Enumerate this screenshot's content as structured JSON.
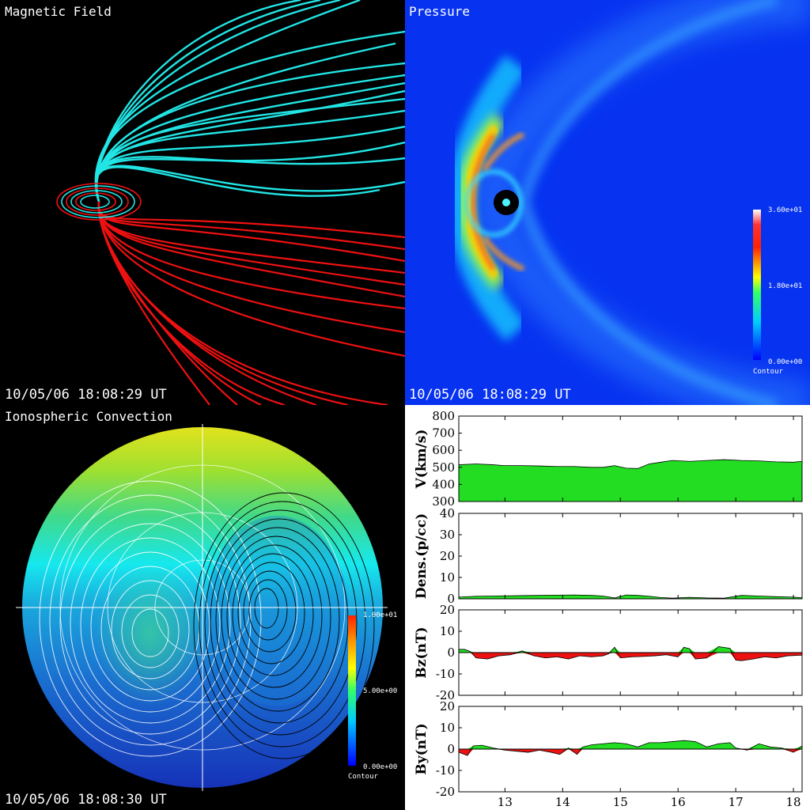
{
  "panels": {
    "magnetic": {
      "title": "Magnetic Field",
      "timestamp": "10/05/06 18:08:29 UT"
    },
    "pressure": {
      "title": "Pressure",
      "timestamp": "10/05/06 18:08:29 UT",
      "colorbar": {
        "max": "3.60e+01",
        "mid": "1.80e+01",
        "min": "0.00e+00",
        "caption": "Contour"
      }
    },
    "ionosphere": {
      "title": "Ionospheric Convection",
      "timestamp": "10/05/06 18:08:30 UT",
      "colorbar": {
        "max": "1.00e+01",
        "mid": "5.00e+00",
        "min": "0.00e+00",
        "caption": "Contour"
      }
    }
  },
  "colors": {
    "open_field_north": "#22e5e5",
    "open_field_south": "#ee1111",
    "positive_fill": "#22dd22",
    "negative_fill": "#ee1111",
    "pressure_background": "#0733f0"
  },
  "chart_data": [
    {
      "type": "area",
      "ylabel": "V(km/s)",
      "ylim": [
        300,
        800
      ],
      "yticks": [
        300,
        400,
        500,
        600,
        700,
        800
      ],
      "xlim": [
        12.2,
        18.15
      ],
      "x": [
        12.2,
        12.5,
        12.8,
        13.0,
        13.3,
        13.6,
        13.9,
        14.2,
        14.5,
        14.7,
        14.9,
        15.1,
        15.3,
        15.5,
        15.7,
        15.9,
        16.2,
        16.5,
        16.8,
        17.1,
        17.4,
        17.7,
        18.0,
        18.15
      ],
      "values": [
        515,
        520,
        515,
        510,
        510,
        508,
        505,
        505,
        500,
        500,
        510,
        495,
        493,
        520,
        530,
        540,
        535,
        540,
        545,
        540,
        538,
        532,
        530,
        535
      ]
    },
    {
      "type": "area",
      "ylabel": "Dens.(p/cc)",
      "ylim": [
        0,
        40
      ],
      "yticks": [
        0,
        10,
        20,
        30,
        40
      ],
      "xlim": [
        12.2,
        18.15
      ],
      "x": [
        12.2,
        12.5,
        12.8,
        13.0,
        13.3,
        13.6,
        13.9,
        14.2,
        14.5,
        14.7,
        14.9,
        15.1,
        15.3,
        15.5,
        15.7,
        15.9,
        16.2,
        16.5,
        16.8,
        17.1,
        17.4,
        17.7,
        18.0,
        18.15
      ],
      "values": [
        0.8,
        1.2,
        1.3,
        1.4,
        1.5,
        1.6,
        1.7,
        1.8,
        1.6,
        1.3,
        0.4,
        1.8,
        1.6,
        1.2,
        0.6,
        0.3,
        0.7,
        0.4,
        0.3,
        1.6,
        1.3,
        1.0,
        0.8,
        0.5
      ]
    },
    {
      "type": "area",
      "ylabel": "Bz(nT)",
      "ylim": [
        -20,
        20
      ],
      "yticks": [
        -20,
        -10,
        0,
        10,
        20
      ],
      "xlim": [
        12.2,
        18.15
      ],
      "x": [
        12.2,
        12.3,
        12.4,
        12.5,
        12.7,
        12.9,
        13.1,
        13.3,
        13.5,
        13.7,
        13.9,
        14.1,
        14.3,
        14.5,
        14.7,
        14.8,
        14.9,
        15.0,
        15.2,
        15.4,
        15.6,
        15.8,
        16.0,
        16.1,
        16.2,
        16.3,
        16.5,
        16.7,
        16.9,
        17.0,
        17.1,
        17.3,
        17.5,
        17.7,
        17.9,
        18.15
      ],
      "values": [
        1.5,
        1.5,
        0.5,
        -2.5,
        -3.0,
        -1.5,
        -1.0,
        0.8,
        -1.5,
        -2.5,
        -2.0,
        -3.0,
        -1.5,
        -2.0,
        -1.5,
        -0.5,
        2.5,
        -2.5,
        -2.0,
        -1.8,
        -1.5,
        -1.0,
        -2.0,
        2.5,
        1.8,
        -3.0,
        -2.5,
        2.8,
        2.0,
        -3.5,
        -3.8,
        -3.0,
        -2.0,
        -2.5,
        -1.5,
        -1.2
      ]
    },
    {
      "type": "area",
      "ylabel": "By(nT)",
      "ylim": [
        -20,
        20
      ],
      "yticks": [
        -20,
        -10,
        0,
        10,
        20
      ],
      "xlim": [
        12.2,
        18.15
      ],
      "x": [
        12.2,
        12.35,
        12.45,
        12.6,
        12.8,
        13.0,
        13.2,
        13.4,
        13.6,
        13.8,
        13.95,
        14.1,
        14.25,
        14.35,
        14.5,
        14.7,
        14.9,
        15.1,
        15.3,
        15.5,
        15.7,
        15.9,
        16.1,
        16.3,
        16.5,
        16.7,
        16.9,
        17.0,
        17.2,
        17.4,
        17.6,
        17.8,
        18.0,
        18.15
      ],
      "values": [
        -1.5,
        -3.0,
        1.5,
        1.8,
        0.5,
        -0.5,
        -1.0,
        -1.5,
        -0.5,
        -1.5,
        -2.5,
        0.5,
        -2.5,
        1.0,
        2.0,
        2.5,
        3.0,
        2.5,
        1.0,
        3.0,
        3.0,
        3.5,
        4.0,
        3.5,
        1.0,
        2.5,
        3.0,
        0.5,
        -0.5,
        2.5,
        1.0,
        0.5,
        -1.5,
        1.5
      ]
    }
  ],
  "x_axis": {
    "ticks": [
      13,
      14,
      15,
      16,
      17,
      18
    ],
    "tick_labels": [
      "13",
      "14",
      "15",
      "16",
      "17",
      "18"
    ]
  }
}
